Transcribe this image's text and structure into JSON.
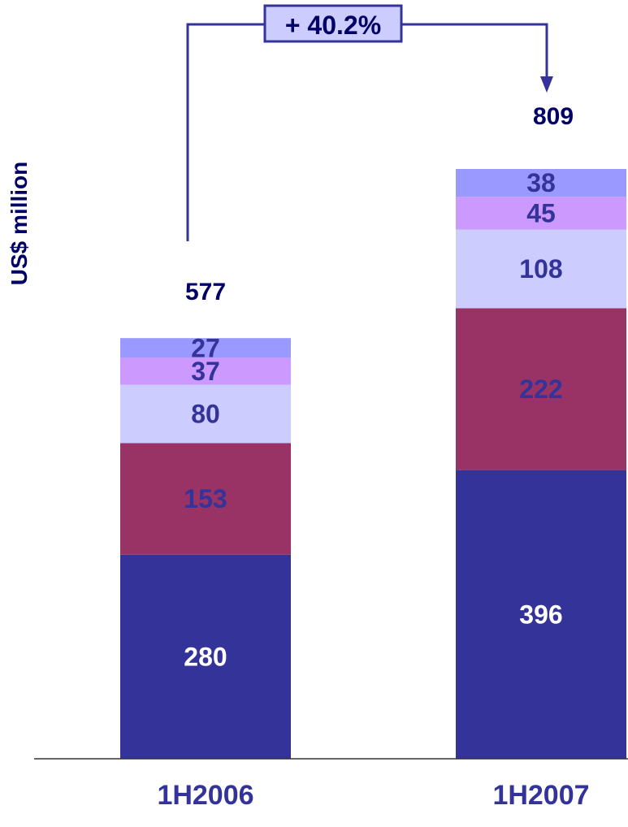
{
  "chart_data": {
    "type": "bar",
    "stacked": true,
    "ylabel": "US$  million",
    "categories": [
      "1H2006",
      "1H2007"
    ],
    "series": [
      {
        "values": [
          280,
          396
        ],
        "color": "#333399",
        "label_color": "#ffffff"
      },
      {
        "values": [
          153,
          222
        ],
        "color": "#993366",
        "label_color": "#333399"
      },
      {
        "values": [
          80,
          108
        ],
        "color": "#ccccff",
        "label_color": "#333399"
      },
      {
        "values": [
          37,
          45
        ],
        "color": "#cc99ff",
        "label_color": "#333399"
      },
      {
        "values": [
          27,
          38
        ],
        "color": "#9999ff",
        "label_color": "#333399"
      }
    ],
    "totals": [
      577,
      809
    ],
    "growth_label": "+ 40.2%",
    "ylim": [
      0,
      809
    ],
    "grid": false,
    "legend": "none",
    "colors": {
      "axis": "#333333",
      "text": "#000066",
      "accent": "#333399",
      "growth_box_fill": "#ccccff"
    }
  }
}
